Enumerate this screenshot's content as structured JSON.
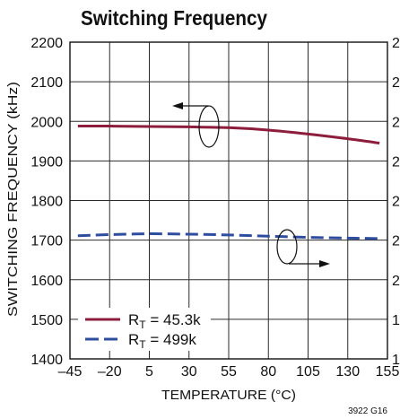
{
  "chart_data": {
    "type": "line",
    "title": "Switching Frequency",
    "xlabel": "TEMPERATURE (°C)",
    "ylabel": "SWITCHING FREQUENCY (kHz)",
    "xlim": [
      -45,
      155
    ],
    "ylim": [
      1400,
      2200
    ],
    "xticks": [
      -45,
      -20,
      5,
      30,
      55,
      80,
      105,
      130,
      155
    ],
    "xtick_labels": [
      "–45",
      "–20",
      "5",
      "30",
      "55",
      "80",
      "105",
      "130",
      "155"
    ],
    "yticks": [
      1400,
      1500,
      1600,
      1700,
      1800,
      1900,
      2000,
      2100,
      2200
    ],
    "ytick_labels": [
      "1400",
      "1500",
      "1600",
      "1700",
      "1800",
      "1900",
      "2000",
      "2100",
      "2200"
    ],
    "right_tick_labels_visible": [
      "1",
      "1",
      "2",
      "2",
      "2",
      "2",
      "2",
      "2",
      "2"
    ],
    "grid": true,
    "legend_position": "bottom-left",
    "series": [
      {
        "name": {
          "main": "R",
          "sub": "T",
          "rest": " = 45.3k"
        },
        "color": "#8c1d3c",
        "line_style": "solid",
        "arrow": "left",
        "x": [
          -40,
          -20,
          5,
          30,
          55,
          80,
          105,
          130,
          150
        ],
        "y": [
          1988,
          1988,
          1987,
          1986,
          1984,
          1978,
          1968,
          1956,
          1945
        ]
      },
      {
        "name": {
          "main": "R",
          "sub": "T",
          "rest": " = 499k"
        },
        "color": "#2f4d9e",
        "line_style": "dashed",
        "arrow": "right",
        "x": [
          -40,
          -20,
          5,
          30,
          55,
          80,
          105,
          130,
          150
        ],
        "y": [
          1711,
          1714,
          1716,
          1715,
          1713,
          1710,
          1707,
          1705,
          1704
        ]
      }
    ],
    "footnote": "3922 G16"
  }
}
